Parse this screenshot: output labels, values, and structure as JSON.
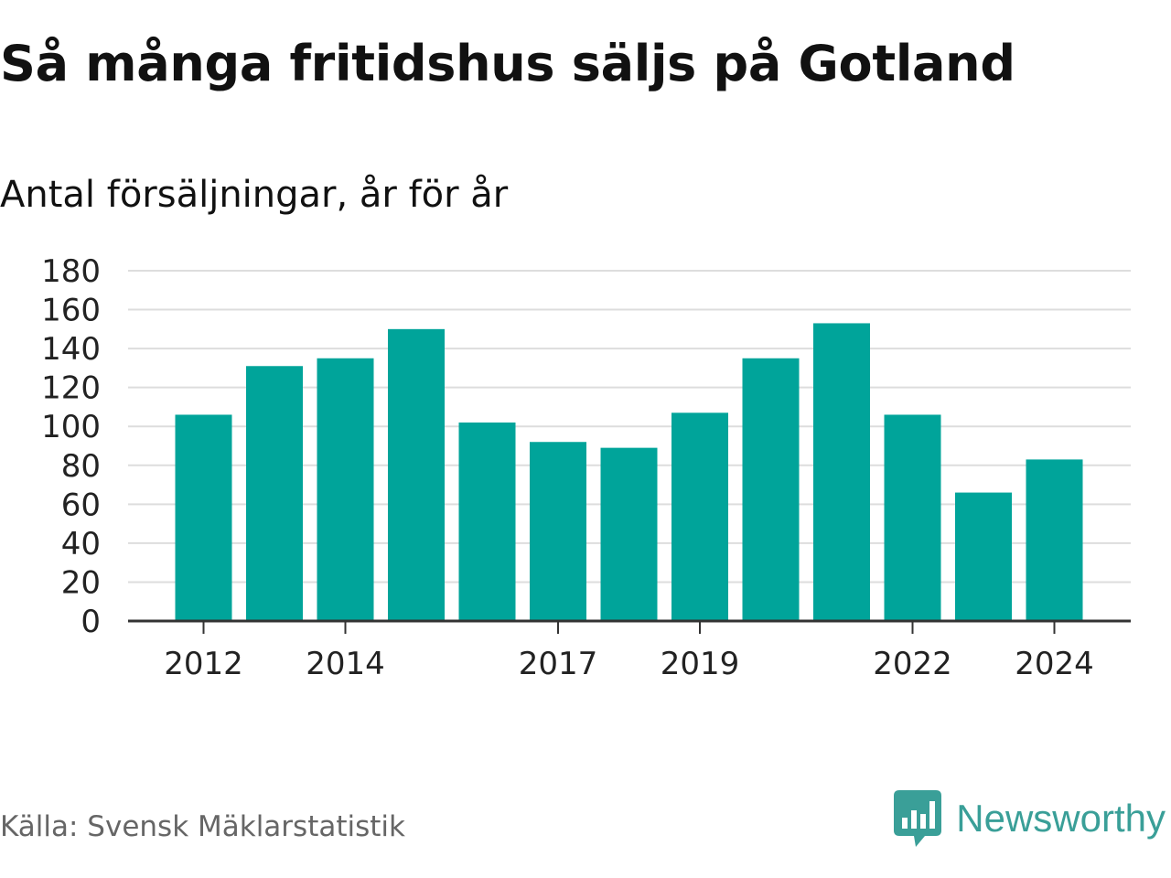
{
  "header": {
    "title": "Så många fritidshus säljs på Gotland",
    "subtitle": "Antal försäljningar, år för år"
  },
  "footer": {
    "source": "Källa: Svensk Mäklarstatistik",
    "brand": "Newsworthy",
    "brand_icon": "bar-chart-speech-bubble-icon"
  },
  "colors": {
    "bar": "#00a49a",
    "grid": "#dddddd",
    "axis": "#333333",
    "brand": "#3a9f98"
  },
  "chart_data": {
    "type": "bar",
    "title": "Så många fritidshus säljs på Gotland",
    "subtitle": "Antal försäljningar, år för år",
    "categories": [
      "2012",
      "2013",
      "2014",
      "2015",
      "2016",
      "2017",
      "2018",
      "2019",
      "2020",
      "2021",
      "2022",
      "2023",
      "2024"
    ],
    "values": [
      106,
      131,
      135,
      150,
      102,
      92,
      89,
      107,
      135,
      153,
      106,
      66,
      83
    ],
    "x_tick_labels": [
      "2012",
      "2014",
      "2017",
      "2019",
      "2022",
      "2024"
    ],
    "y_ticks": [
      0,
      20,
      40,
      60,
      80,
      100,
      120,
      140,
      160,
      180
    ],
    "ylim": [
      0,
      180
    ],
    "grid": true,
    "legend": "none",
    "xlabel": "",
    "ylabel": ""
  }
}
